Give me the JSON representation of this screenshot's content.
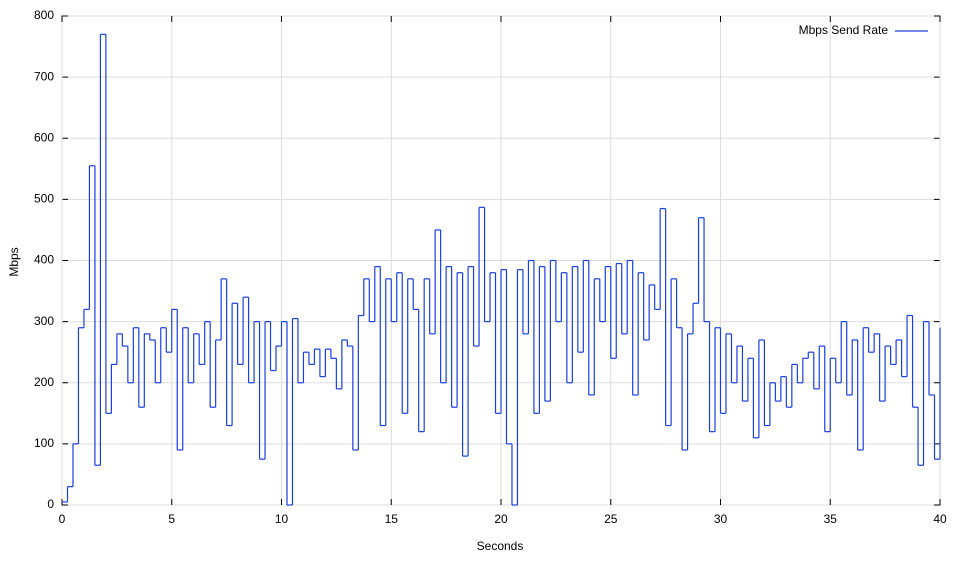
{
  "chart_data": {
    "type": "line",
    "steps": true,
    "xlabel": "Seconds",
    "ylabel": "Mbps",
    "xlim": [
      0,
      40
    ],
    "xticks": [
      0,
      5,
      10,
      15,
      20,
      25,
      30,
      35,
      40
    ],
    "ylim": [
      0,
      800
    ],
    "yticks": [
      0,
      100,
      200,
      300,
      400,
      500,
      600,
      700,
      800
    ],
    "grid": true,
    "legend": "top-right",
    "x": [
      0,
      0.25,
      0.5,
      0.75,
      1,
      1.25,
      1.5,
      1.75,
      2,
      2.25,
      2.5,
      2.75,
      3,
      3.25,
      3.5,
      3.75,
      4,
      4.25,
      4.5,
      4.75,
      5,
      5.25,
      5.5,
      5.75,
      6,
      6.25,
      6.5,
      6.75,
      7,
      7.25,
      7.5,
      7.75,
      8,
      8.25,
      8.5,
      8.75,
      9,
      9.25,
      9.5,
      9.75,
      10,
      10.25,
      10.5,
      10.75,
      11,
      11.25,
      11.5,
      11.75,
      12,
      12.25,
      12.5,
      12.75,
      13,
      13.25,
      13.5,
      13.75,
      14,
      14.25,
      14.5,
      14.75,
      15,
      15.25,
      15.5,
      15.75,
      16,
      16.25,
      16.5,
      16.75,
      17,
      17.25,
      17.5,
      17.75,
      18,
      18.25,
      18.5,
      18.75,
      19,
      19.25,
      19.5,
      19.75,
      20,
      20.25,
      20.5,
      20.75,
      21,
      21.25,
      21.5,
      21.75,
      22,
      22.25,
      22.5,
      22.75,
      23,
      23.25,
      23.5,
      23.75,
      24,
      24.25,
      24.5,
      24.75,
      25,
      25.25,
      25.5,
      25.75,
      26,
      26.25,
      26.5,
      26.75,
      27,
      27.25,
      27.5,
      27.75,
      28,
      28.25,
      28.5,
      28.75,
      29,
      29.25,
      29.5,
      29.75,
      30,
      30.25,
      30.5,
      30.75,
      31,
      31.25,
      31.5,
      31.75,
      32,
      32.25,
      32.5,
      32.75,
      33,
      33.25,
      33.5,
      33.75,
      34,
      34.25,
      34.5,
      34.75,
      35,
      35.25,
      35.5,
      35.75,
      36,
      36.25,
      36.5,
      36.75,
      37,
      37.25,
      37.5,
      37.75,
      38,
      38.25,
      38.5,
      38.75,
      39,
      39.25,
      39.5,
      39.75,
      40
    ],
    "series": [
      {
        "name": "Mbps Send Rate",
        "color": "#1a3fe0",
        "values": [
          5,
          30,
          100,
          290,
          320,
          555,
          65,
          770,
          150,
          230,
          280,
          260,
          200,
          290,
          160,
          280,
          270,
          200,
          290,
          250,
          320,
          90,
          290,
          200,
          280,
          230,
          300,
          160,
          270,
          370,
          130,
          330,
          230,
          340,
          200,
          300,
          75,
          300,
          220,
          260,
          300,
          0,
          305,
          200,
          250,
          230,
          255,
          210,
          255,
          240,
          190,
          270,
          260,
          90,
          310,
          370,
          300,
          390,
          130,
          370,
          300,
          380,
          150,
          370,
          320,
          120,
          370,
          280,
          450,
          200,
          390,
          160,
          380,
          80,
          390,
          260,
          487,
          300,
          380,
          150,
          385,
          100,
          0,
          385,
          280,
          400,
          150,
          390,
          170,
          400,
          300,
          380,
          200,
          390,
          250,
          400,
          180,
          370,
          300,
          390,
          240,
          395,
          280,
          400,
          180,
          380,
          270,
          360,
          320,
          485,
          130,
          370,
          290,
          90,
          280,
          330,
          470,
          300,
          120,
          290,
          150,
          280,
          200,
          260,
          170,
          240,
          110,
          270,
          130,
          200,
          170,
          210,
          160,
          230,
          200,
          240,
          250,
          190,
          260,
          120,
          240,
          200,
          300,
          180,
          270,
          90,
          290,
          250,
          280,
          170,
          260,
          230,
          270,
          210,
          310,
          160,
          65,
          300,
          180,
          75,
          290
        ]
      }
    ]
  }
}
